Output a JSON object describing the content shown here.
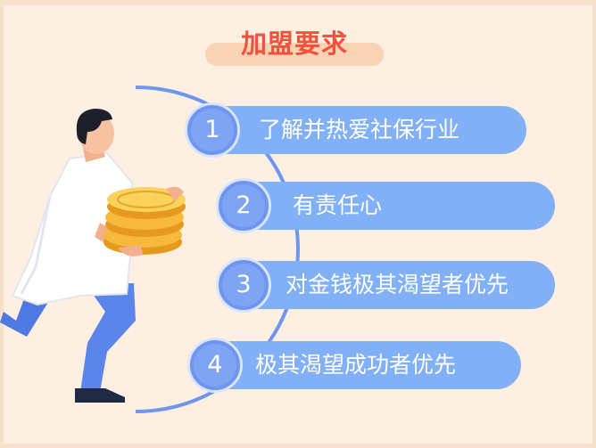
{
  "title": "加盟要求",
  "items": [
    {
      "num": "1",
      "label": "了解并热爱社保行业"
    },
    {
      "num": "2",
      "label": "有责任心"
    },
    {
      "num": "3",
      "label": "对金钱极其渴望者优先"
    },
    {
      "num": "4",
      "label": "极其渴望成功者优先"
    }
  ],
  "colors": {
    "background": "#fdf0e3",
    "title": "#f2513c",
    "title_pill": "#f9d3b5",
    "item_bar": "#82b0f7",
    "number_circle": "#6f95ef",
    "arc": "#6f95ef"
  }
}
